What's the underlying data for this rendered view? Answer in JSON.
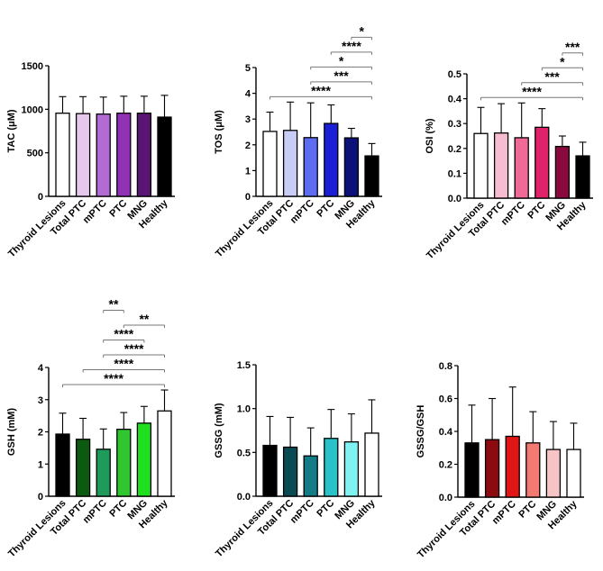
{
  "chart_data": [
    {
      "type": "bar",
      "ylabel": "TAC (μM)",
      "ylim": [
        0,
        1500
      ],
      "yticks": [
        "0",
        "500",
        "1000",
        "1500"
      ],
      "categories": [
        "Thyroid Lesions",
        "Total PTC",
        "mPTC",
        "PTC",
        "MNG",
        "Healthy"
      ],
      "values": [
        955,
        950,
        945,
        955,
        955,
        910
      ],
      "errors": [
        190,
        195,
        195,
        195,
        195,
        250
      ],
      "colors": [
        "#ffffff",
        "#e6c8ee",
        "#b36bd4",
        "#9131b5",
        "#5a1474",
        "#000000"
      ],
      "significance": []
    },
    {
      "type": "bar",
      "ylabel": "TOS (μM)",
      "ylim": [
        0,
        5
      ],
      "yticks": [
        "0",
        "1",
        "2",
        "3",
        "4",
        "5"
      ],
      "categories": [
        "Thyroid Lesions",
        "Total PTC",
        "mPTC",
        "PTC",
        "MNG",
        "Healthy"
      ],
      "values": [
        2.52,
        2.56,
        2.28,
        2.83,
        2.27,
        1.57
      ],
      "errors": [
        0.75,
        1.1,
        1.35,
        0.72,
        0.37,
        0.48
      ],
      "colors": [
        "#ffffff",
        "#c8cdf5",
        "#5d6cf0",
        "#1a1fd6",
        "#0d127a",
        "#000000"
      ],
      "significance": [
        {
          "from": 0,
          "to": 5,
          "label": "****"
        },
        {
          "from": 2,
          "to": 5,
          "label": "***"
        },
        {
          "from": 2,
          "to": 5,
          "label": "*"
        },
        {
          "from": 3,
          "to": 5,
          "label": "****"
        },
        {
          "from": 4,
          "to": 5,
          "label": "*"
        }
      ]
    },
    {
      "type": "bar",
      "ylabel": "OSI (%)",
      "ylim": [
        0,
        0.5
      ],
      "yticks": [
        "0.0",
        "0.1",
        "0.2",
        "0.3",
        "0.4",
        "0.5"
      ],
      "categories": [
        "Thyroid Lesions",
        "Total PTC",
        "mPTC",
        "PTC",
        "MNG",
        "Healthy"
      ],
      "values": [
        0.26,
        0.262,
        0.243,
        0.285,
        0.208,
        0.17
      ],
      "errors": [
        0.105,
        0.118,
        0.14,
        0.075,
        0.042,
        0.055
      ],
      "colors": [
        "#ffffff",
        "#f6bcd2",
        "#ef6a96",
        "#e0226a",
        "#8a0a3e",
        "#000000"
      ],
      "significance": [
        {
          "from": 0,
          "to": 5,
          "label": "****"
        },
        {
          "from": 2,
          "to": 5,
          "label": "***"
        },
        {
          "from": 3,
          "to": 5,
          "label": "*"
        },
        {
          "from": 4,
          "to": 5,
          "label": "***"
        }
      ]
    },
    {
      "type": "bar",
      "ylabel": "GSH (mM)",
      "ylim": [
        0,
        4
      ],
      "yticks": [
        "0",
        "1",
        "2",
        "3",
        "4"
      ],
      "categories": [
        "Thyroid Lesions",
        "Total PTC",
        "mPTC",
        "PTC",
        "MNG",
        "Healthy"
      ],
      "values": [
        1.93,
        1.77,
        1.46,
        2.08,
        2.27,
        2.65
      ],
      "errors": [
        0.65,
        0.65,
        0.63,
        0.52,
        0.52,
        0.65
      ],
      "colors": [
        "#000000",
        "#0c5a10",
        "#1e9a5a",
        "#2fc62f",
        "#1fe01f",
        "#ffffff"
      ],
      "significance": [
        {
          "from": 0,
          "to": 5,
          "label": "****"
        },
        {
          "from": 1,
          "to": 5,
          "label": "****"
        },
        {
          "from": 2,
          "to": 3,
          "label": "**"
        },
        {
          "from": 2,
          "to": 4,
          "label": "****"
        },
        {
          "from": 2,
          "to": 5,
          "label": "****"
        },
        {
          "from": 3,
          "to": 5,
          "label": "**"
        }
      ]
    },
    {
      "type": "bar",
      "ylabel": "GSSG (mM)",
      "ylim": [
        0,
        1.5
      ],
      "yticks": [
        "0.0",
        "0.5",
        "1.0",
        "1.5"
      ],
      "categories": [
        "Thyroid Lesions",
        "Total PTC",
        "mPTC",
        "PTC",
        "MNG",
        "Healthy"
      ],
      "values": [
        0.58,
        0.56,
        0.46,
        0.66,
        0.62,
        0.72
      ],
      "errors": [
        0.33,
        0.34,
        0.32,
        0.33,
        0.32,
        0.38
      ],
      "colors": [
        "#000000",
        "#0a4a52",
        "#137c86",
        "#2ac2c8",
        "#7ff2f2",
        "#ffffff"
      ],
      "significance": []
    },
    {
      "type": "bar",
      "ylabel": "GSSG/GSH",
      "ylim": [
        0,
        0.8
      ],
      "yticks": [
        "0.0",
        "0.2",
        "0.4",
        "0.6",
        "0.8"
      ],
      "categories": [
        "Thyroid Lesions",
        "Total PTC",
        "mPTC",
        "PTC",
        "MNG",
        "Healthy"
      ],
      "values": [
        0.33,
        0.35,
        0.37,
        0.33,
        0.29,
        0.29
      ],
      "errors": [
        0.23,
        0.25,
        0.3,
        0.19,
        0.17,
        0.16
      ],
      "colors": [
        "#000000",
        "#8c0a10",
        "#e01616",
        "#f27a72",
        "#f6c4c4",
        "#ffffff"
      ],
      "significance": []
    }
  ]
}
